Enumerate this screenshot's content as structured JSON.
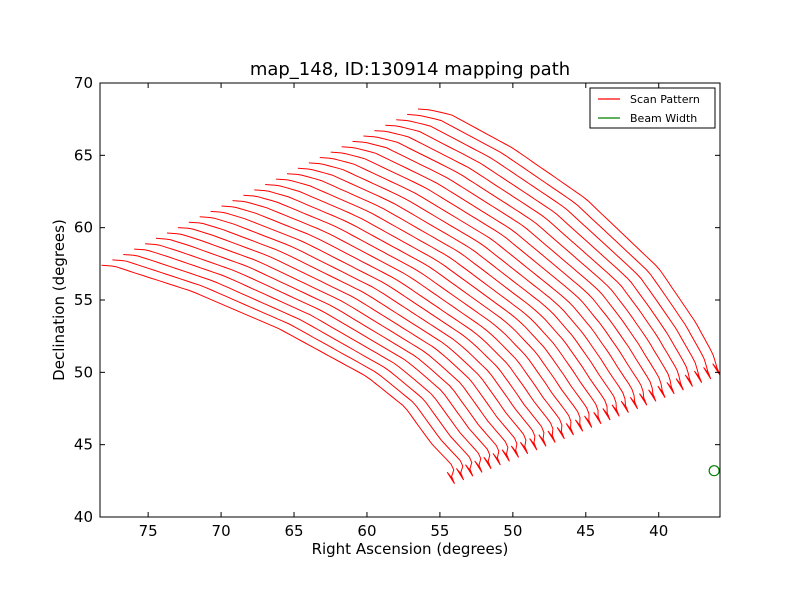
{
  "chart_data": {
    "type": "line",
    "title": "map_148, ID:130914 mapping path",
    "xlabel": "Right Ascension (degrees)",
    "ylabel": "Declination (degrees)",
    "xlim": [
      78.3,
      35.8
    ],
    "ylim": [
      40,
      70
    ],
    "x_inverted": true,
    "xticks": [
      75,
      70,
      65,
      60,
      55,
      50,
      45,
      40
    ],
    "yticks": [
      40,
      45,
      50,
      55,
      60,
      65,
      70
    ],
    "grid": false,
    "legend_position": "top-right",
    "series": [
      {
        "name": "Scan Pattern",
        "color": "#ff0000",
        "n_scans": 30,
        "first_scan": [
          [
            77.2,
            57.3
          ],
          [
            76.0,
            56.9
          ],
          [
            72.0,
            55.6
          ],
          [
            66.0,
            53.0
          ],
          [
            60.0,
            49.7
          ],
          [
            57.4,
            47.6
          ],
          [
            55.6,
            45.1
          ],
          [
            54.0,
            43.4
          ],
          [
            54.2,
            42.8
          ]
        ],
        "last_scan": [
          [
            55.5,
            68.1
          ],
          [
            54.2,
            67.8
          ],
          [
            50.0,
            65.5
          ],
          [
            45.0,
            62.0
          ],
          [
            40.0,
            57.2
          ],
          [
            37.5,
            53.5
          ],
          [
            36.3,
            51.3
          ],
          [
            36.0,
            50.3
          ]
        ]
      },
      {
        "name": "Beam Width",
        "color": "#008000",
        "marker": "circle",
        "x": [
          36.2
        ],
        "y": [
          43.2
        ]
      }
    ]
  }
}
